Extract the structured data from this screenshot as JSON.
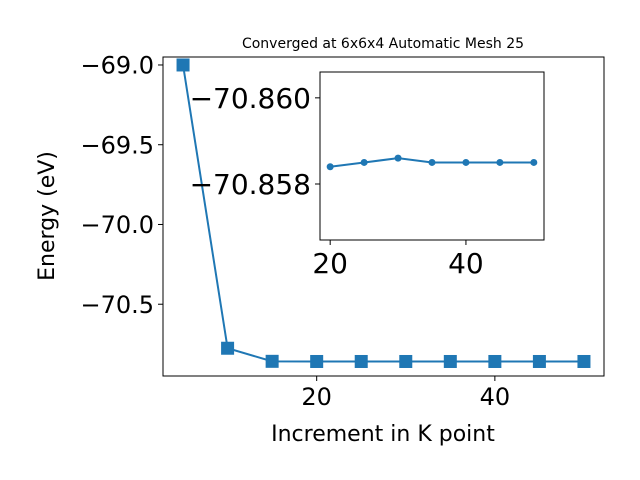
{
  "chart_data": [
    {
      "type": "line",
      "title": "Converged at 6x6x4 Automatic Mesh 25",
      "xlabel": "Increment in K point",
      "ylabel": "Energy (eV)",
      "x": [
        5,
        10,
        15,
        20,
        25,
        30,
        35,
        40,
        45,
        50
      ],
      "series": [
        {
          "values": [
            -69.0,
            -70.776,
            -70.858,
            -70.859,
            -70.859,
            -70.859,
            -70.859,
            -70.859,
            -70.859,
            -70.859
          ]
        }
      ],
      "xlim": [
        2.75,
        52.25
      ],
      "ylim": [
        -70.95,
        -68.95
      ],
      "xticks": [
        20,
        40
      ],
      "xtick_labels": [
        "20",
        "40"
      ],
      "yticks": [
        -69.0,
        -69.5,
        -70.0,
        -70.5
      ],
      "ytick_labels": [
        "−69.0",
        "−69.5",
        "−70.0",
        "−70.5"
      ],
      "marker": "square",
      "color": "#1f77b4",
      "grid": false
    },
    {
      "type": "line",
      "x": [
        20,
        25,
        30,
        35,
        40,
        45,
        50
      ],
      "series": [
        {
          "values": [
            -70.8584,
            -70.8585,
            -70.8586,
            -70.8585,
            -70.8585,
            -70.8585,
            -70.8585
          ]
        }
      ],
      "xlim": [
        18.5,
        51.5
      ],
      "ylim": [
        -70.8567,
        -70.8606
      ],
      "yaxis_inverted": true,
      "xticks": [
        20,
        40
      ],
      "xtick_labels": [
        "20",
        "40"
      ],
      "yticks": [
        -70.86,
        -70.858
      ],
      "ytick_labels": [
        "−70.860",
        "−70.858"
      ],
      "marker": "circle",
      "color": "#1f77b4",
      "grid": false,
      "placement": "inset"
    }
  ]
}
